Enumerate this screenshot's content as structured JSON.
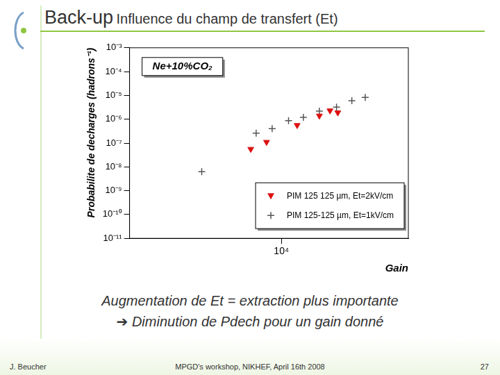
{
  "slide": {
    "header": "Back-up",
    "title": "Influence du champ de transfert (Et)",
    "text": [
      "Augmentation de Et = extraction plus importante",
      "➔ Diminution de Pdech pour un gain donné"
    ],
    "footer": {
      "author": "J. Beucher",
      "event": "MPGD's workshop, NIKHEF, April 16th 2008",
      "page": "27"
    }
  },
  "chart_data": {
    "type": "scatter",
    "annotation": "Ne+10%CO₂",
    "x_label": "Gain",
    "y_label": "Probabilite de decharges (hadrons⁻¹)",
    "log": true,
    "grid": false,
    "legend": "bottom-right",
    "xlim": [
      2400,
      33000
    ],
    "xticks": [
      {
        "value": 10000,
        "label": "10⁴"
      }
    ],
    "ylim": [
      1e-11,
      0.001
    ],
    "yticks": [
      {
        "value": 1e-11,
        "label": "10⁻¹¹"
      },
      {
        "value": 1e-10,
        "label": "10⁻¹⁰"
      },
      {
        "value": 1e-09,
        "label": "10⁻⁹"
      },
      {
        "value": 1e-08,
        "label": "10⁻⁸"
      },
      {
        "value": 1e-07,
        "label": "10⁻⁷"
      },
      {
        "value": 1e-06,
        "label": "10⁻⁶"
      },
      {
        "value": 1e-05,
        "label": "10⁻⁵"
      },
      {
        "value": 0.0001,
        "label": "10⁻⁴"
      },
      {
        "value": 0.001,
        "label": "10⁻³"
      }
    ],
    "series": [
      {
        "name": "PIM 125 125 µm, Et=2kV/cm",
        "color": "#dd1111",
        "marker": "triangle",
        "x": [
          7500,
          8700,
          11600,
          14300,
          15800,
          17000
        ],
        "values": [
          5.6e-08,
          1.1e-07,
          5.6e-07,
          1.4e-06,
          2.3e-06,
          1.9e-06
        ]
      },
      {
        "name": "PIM 125-125 µm, Et=1kV/cm",
        "color": "#555555",
        "marker": "cross",
        "x": [
          4730,
          7890,
          9170,
          10700,
          12300,
          14300,
          16800,
          19400,
          22000
        ],
        "values": [
          6.3e-09,
          2.6e-07,
          4e-07,
          8.7e-07,
          1.2e-06,
          2.2e-06,
          3.2e-06,
          6e-06,
          8.2e-06
        ]
      }
    ]
  }
}
